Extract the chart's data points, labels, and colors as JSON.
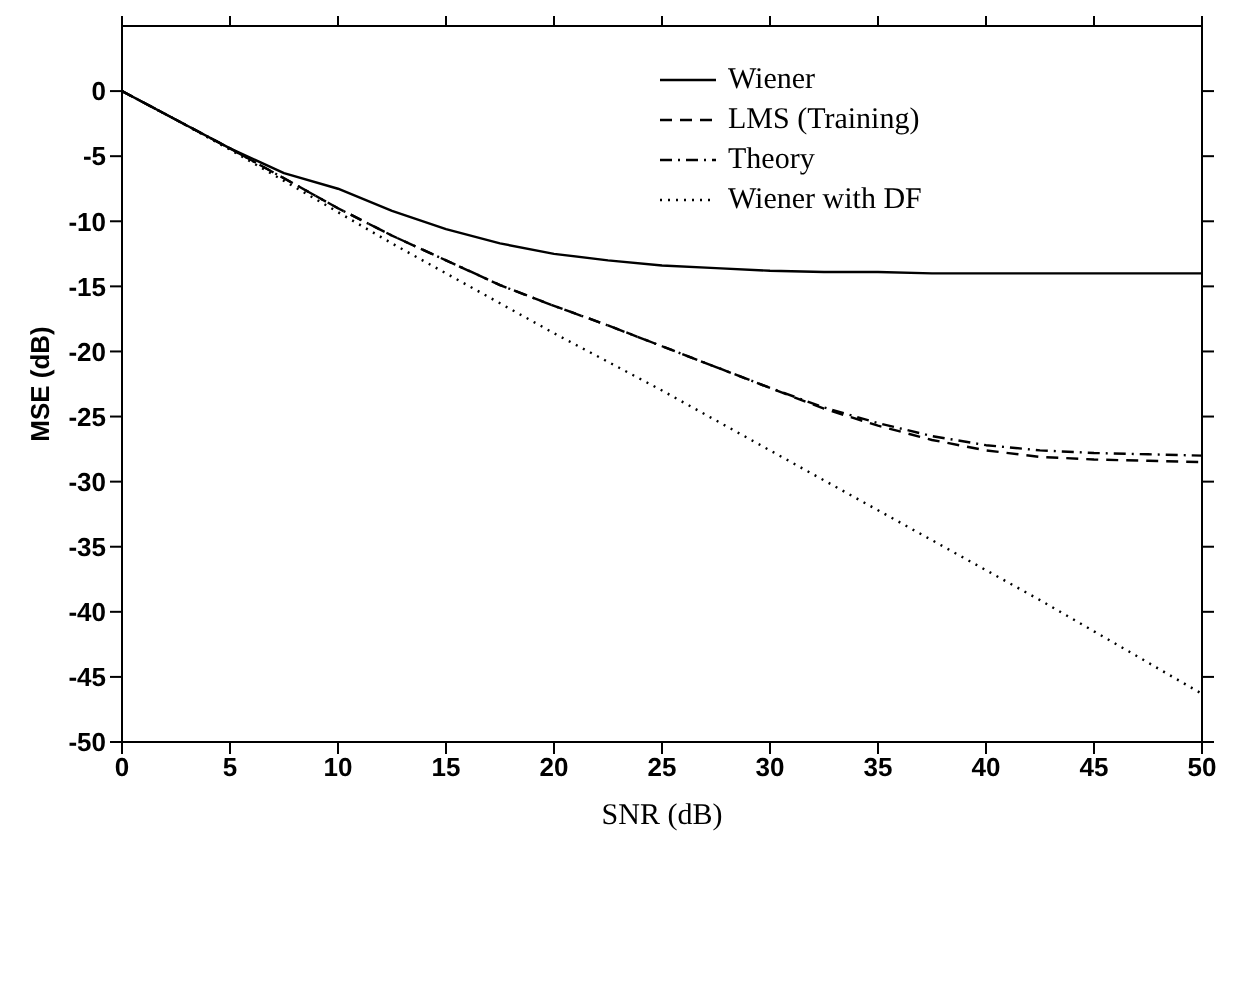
{
  "chart_data": {
    "type": "line",
    "xlabel": "SNR (dB)",
    "ylabel": "MSE (dB)",
    "x": [
      0,
      2.5,
      5,
      7.5,
      10,
      12.5,
      15,
      17.5,
      20,
      22.5,
      25,
      27.5,
      30,
      32.5,
      35,
      37.5,
      40,
      42.5,
      45,
      47.5,
      50
    ],
    "series": [
      {
        "name": "Wiener",
        "color": "#000000",
        "line_style": "solid",
        "values": [
          0,
          -2.2,
          -4.4,
          -6.3,
          -7.5,
          -9.2,
          -10.6,
          -11.7,
          -12.5,
          -13.0,
          -13.4,
          -13.6,
          -13.8,
          -13.9,
          -13.9,
          -14.0,
          -14.0,
          -14.0,
          -14.0,
          -14.0,
          -14.0
        ]
      },
      {
        "name": "LMS (Training)",
        "color": "#000000",
        "line_style": "dashed",
        "values": [
          0,
          -2.2,
          -4.4,
          -6.7,
          -9.0,
          -11.1,
          -13.0,
          -14.9,
          -16.5,
          -18.0,
          -19.6,
          -21.2,
          -22.8,
          -24.4,
          -25.7,
          -26.8,
          -27.6,
          -28.1,
          -28.3,
          -28.4,
          -28.5
        ]
      },
      {
        "name": "Theory",
        "color": "#000000",
        "line_style": "dashdot",
        "values": [
          0,
          -2.2,
          -4.4,
          -6.7,
          -9.0,
          -11.1,
          -13.0,
          -14.9,
          -16.5,
          -18.0,
          -19.6,
          -21.2,
          -22.8,
          -24.3,
          -25.5,
          -26.5,
          -27.2,
          -27.6,
          -27.8,
          -27.9,
          -28.0
        ]
      },
      {
        "name": "Wiener with DF",
        "color": "#000000",
        "line_style": "dotted",
        "values": [
          0,
          -2.2,
          -4.5,
          -6.9,
          -9.3,
          -11.7,
          -14.0,
          -16.3,
          -18.6,
          -20.8,
          -23.0,
          -25.3,
          -27.6,
          -29.9,
          -32.2,
          -34.5,
          -36.8,
          -39.1,
          -41.5,
          -43.9,
          -46.3
        ]
      }
    ],
    "xlim": [
      0,
      50
    ],
    "xticks": [
      0,
      5,
      10,
      15,
      20,
      25,
      30,
      35,
      40,
      45,
      50
    ],
    "ylim": [
      -50,
      5
    ],
    "yticks": [
      -50,
      -45,
      -40,
      -35,
      -30,
      -25,
      -20,
      -15,
      -10,
      -5,
      0
    ],
    "grid": false,
    "legend": "top right",
    "marker": "none"
  }
}
